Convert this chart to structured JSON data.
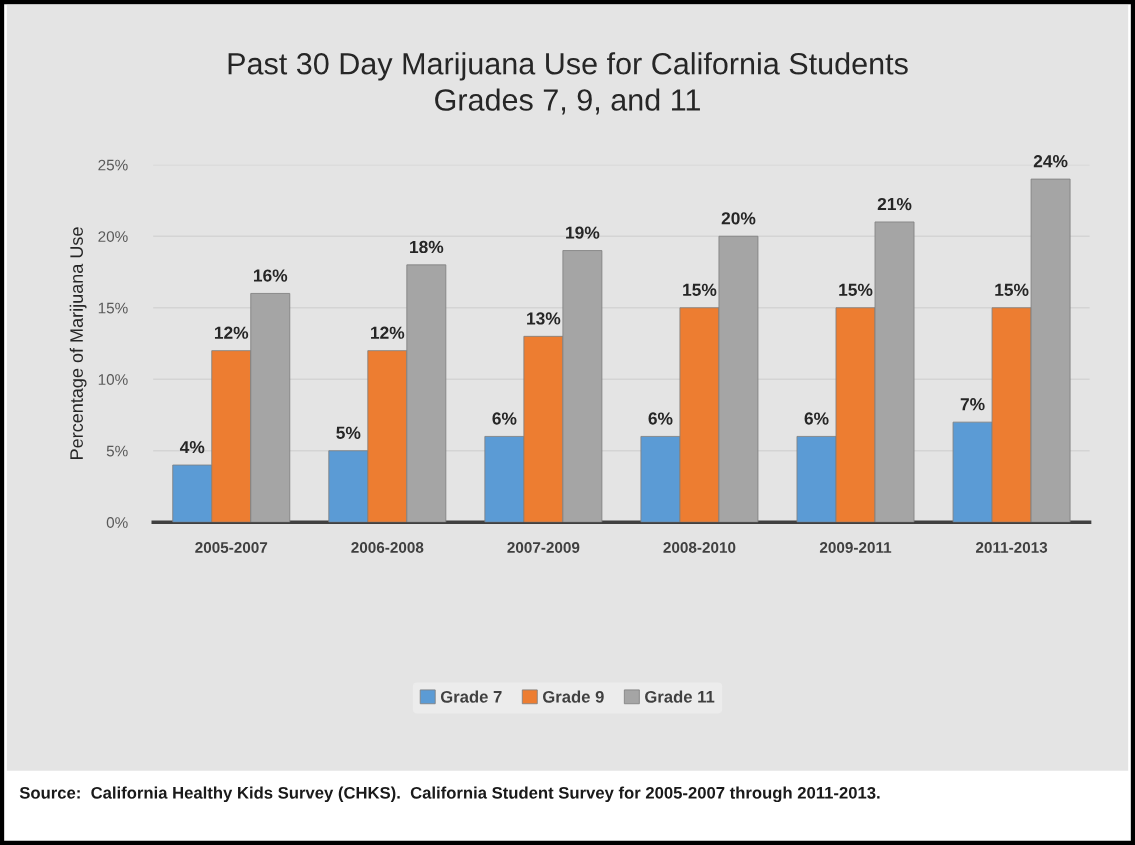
{
  "chart_data": {
    "type": "bar",
    "title": "Past 30 Day Marijuana Use for California Students\nGrades 7, 9, and 11",
    "ylabel": "Percentage of Marijuana Use",
    "categories": [
      "2005-2007",
      "2006-2008",
      "2007-2009",
      "2008-2010",
      "2009-2011",
      "2011-2013"
    ],
    "series": [
      {
        "name": "Grade 7",
        "color": "#5b9bd5",
        "values": [
          4,
          5,
          6,
          6,
          6,
          7
        ],
        "value_labels": [
          "4%",
          "5%",
          "6%",
          "6%",
          "6%",
          "7%"
        ]
      },
      {
        "name": "Grade 9",
        "color": "#ed7d31",
        "values": [
          12,
          12,
          13,
          15,
          15,
          15
        ],
        "value_labels": [
          "12%",
          "12%",
          "13%",
          "15%",
          "15%",
          "15%"
        ]
      },
      {
        "name": "Grade 11",
        "color": "#a5a5a5",
        "values": [
          16,
          18,
          19,
          20,
          21,
          24
        ],
        "value_labels": [
          "16%",
          "18%",
          "19%",
          "20%",
          "21%",
          "24%"
        ]
      }
    ],
    "ylim": [
      0,
      25
    ],
    "yticks": [
      {
        "value": 0,
        "label": "0%"
      },
      {
        "value": 5,
        "label": "5%"
      },
      {
        "value": 10,
        "label": "10%"
      },
      {
        "value": 15,
        "label": "15%"
      },
      {
        "value": 20,
        "label": "20%"
      },
      {
        "value": 25,
        "label": "25%"
      }
    ],
    "grid": "y",
    "legend": "bottom",
    "annotations": [
      "Source:  California Healthy Kids Survey (CHKS).  California Student Survey for 2005-2007 through 2011-2013."
    ]
  }
}
